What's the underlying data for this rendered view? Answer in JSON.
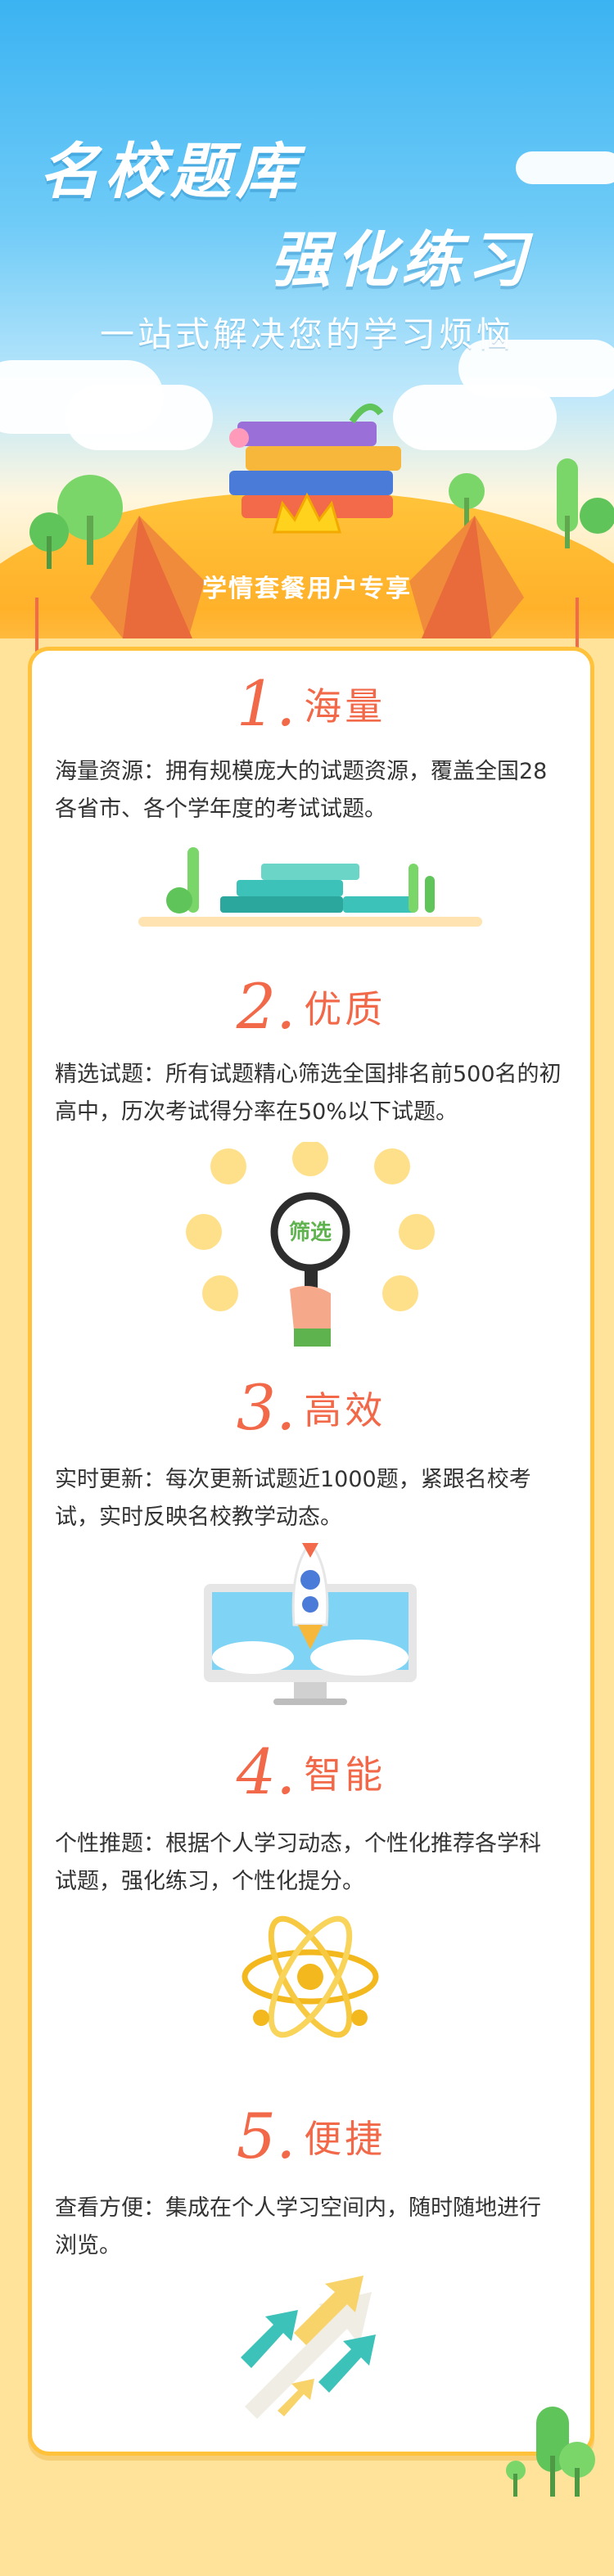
{
  "hero": {
    "title_line1": "名校题库",
    "title_line2": "强化练习",
    "subtitle": "一站式解决您的学习烦恼",
    "ribbon": "学情套餐用户专享"
  },
  "sections": [
    {
      "num": "1.",
      "title": "海量",
      "desc": "海量资源：拥有规模庞大的试题资源，覆盖全国28各省市、各个学年度的考试试题。",
      "icon": "books-icon"
    },
    {
      "num": "2.",
      "title": "优质",
      "desc": "精选试题：所有试题精心筛选全国排名前500名的初高中，历次考试得分率在50%以下试题。",
      "icon": "magnifier-filter-icon",
      "icon_label": "筛选"
    },
    {
      "num": "3.",
      "title": "高效",
      "desc": "实时更新：每次更新试题近1000题，紧跟名校考试，实时反映名校教学动态。",
      "icon": "rocket-monitor-icon"
    },
    {
      "num": "4.",
      "title": "智能",
      "desc": "个性推题：根据个人学习动态，个性化推荐各学科试题，强化练习，个性化提分。",
      "icon": "atom-icon"
    },
    {
      "num": "5.",
      "title": "便捷",
      "desc": "查看方便：集成在个人学习空间内，随时随地进行浏览。",
      "icon": "arrows-icon"
    }
  ],
  "colors": {
    "accent": "#F2694A",
    "sky": "#3BB3F2",
    "gold": "#FFC23A",
    "background": "#FFE39A"
  }
}
